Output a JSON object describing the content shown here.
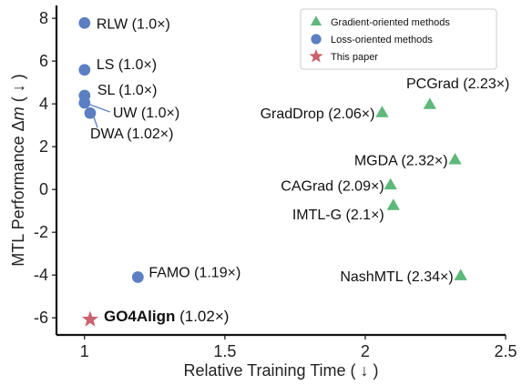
{
  "chart_data": {
    "type": "scatter",
    "xlabel": "Relative Training Time ( ↓ )",
    "ylabel": "MTL Performance Δm ( ↓ )",
    "xlim": [
      0.9,
      2.5
    ],
    "ylim": [
      -6.8,
      8.6
    ],
    "xticks": [
      "1",
      "1.5",
      "2",
      "2.5"
    ],
    "xtick_values": [
      1,
      1.5,
      2,
      2.5
    ],
    "yticks": [
      "8",
      "6",
      "4",
      "2",
      "0",
      "-2",
      "-4",
      "-6"
    ],
    "ytick_values": [
      8,
      6,
      4,
      2,
      0,
      -2,
      -4,
      -6
    ],
    "grid": false,
    "legend_position": "top-right",
    "legend": [
      {
        "name": "Gradient-oriented methods",
        "marker": "triangle",
        "color": "#5db879"
      },
      {
        "name": "Loss-oriented methods",
        "marker": "circle",
        "color": "#5b7fc2"
      },
      {
        "name": "This paper",
        "marker": "star",
        "color": "#c9636e"
      }
    ],
    "series": [
      {
        "name": "Gradient-oriented methods",
        "marker": "triangle",
        "color": "#5db879",
        "points": [
          {
            "label": "PCGrad (2.23×)",
            "x": 2.23,
            "y": 3.96
          },
          {
            "label": "GradDrop (2.06×)",
            "x": 2.06,
            "y": 3.58
          },
          {
            "label": "MGDA (2.32×)",
            "x": 2.32,
            "y": 1.38
          },
          {
            "label": "CAGrad (2.09×)",
            "x": 2.09,
            "y": 0.2
          },
          {
            "label": "IMTL-G (2.1×)",
            "x": 2.1,
            "y": -0.76
          },
          {
            "label": "NashMTL (2.34×)",
            "x": 2.34,
            "y": -4.04
          }
        ]
      },
      {
        "name": "Loss-oriented methods",
        "marker": "circle",
        "color": "#5b7fc2",
        "points": [
          {
            "label": "RLW (1.0×)",
            "x": 1.0,
            "y": 7.78
          },
          {
            "label": "LS (1.0×)",
            "x": 1.0,
            "y": 5.59
          },
          {
            "label": "SL (1.0×)",
            "x": 1.0,
            "y": 4.39
          },
          {
            "label": "UW (1.0×)",
            "x": 1.0,
            "y": 4.05
          },
          {
            "label": "DWA (1.02×)",
            "x": 1.02,
            "y": 3.57
          },
          {
            "label": "FAMO (1.19×)",
            "x": 1.19,
            "y": -4.1
          }
        ]
      },
      {
        "name": "This paper",
        "marker": "star",
        "color": "#c9636e",
        "points": [
          {
            "label": "GO4Align",
            "label_suffix": " (1.02×)",
            "x": 1.02,
            "y": -6.08,
            "bold": true
          }
        ]
      }
    ]
  }
}
